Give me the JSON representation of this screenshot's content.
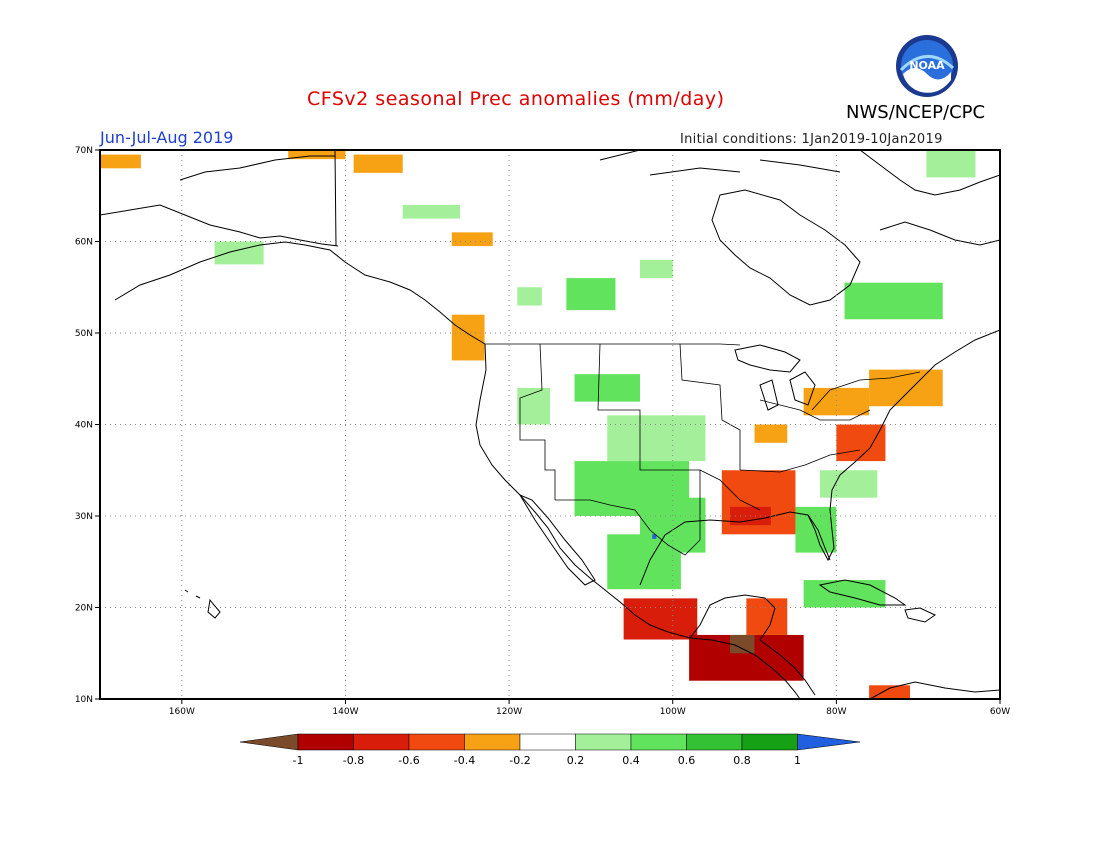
{
  "title": "CFSv2 seasonal Prec anomalies (mm/day)",
  "agency": "NWS/NCEP/CPC",
  "logo_text": "NOAA",
  "season": "Jun-Jul-Aug 2019",
  "initial_conditions": "Initial conditions: 1Jan2019-10Jan2019",
  "map": {
    "projection": "equirectangular",
    "lon_range": [
      -170,
      -60
    ],
    "lat_range": [
      10,
      70
    ],
    "grid": true,
    "lon_labels": [
      "160W",
      "140W",
      "120W",
      "100W",
      "80W",
      "60W"
    ],
    "lat_labels": [
      "70N",
      "60N",
      "50N",
      "40N",
      "30N",
      "20N",
      "10N"
    ]
  },
  "colorbar": {
    "labels": [
      "-1",
      "-0.8",
      "-0.6",
      "-0.4",
      "-0.2",
      "0.2",
      "0.4",
      "0.6",
      "0.8",
      "1"
    ],
    "colors": [
      "#7a4a2a",
      "#b00000",
      "#d81d0a",
      "#f04a10",
      "#f7a215",
      "#ffffff",
      "#a4f09a",
      "#62e35e",
      "#34c234",
      "#16a016",
      "#1f5fe0"
    ]
  },
  "anomaly_regions": [
    {
      "name": "alaska-north-slope",
      "level": -0.3,
      "lon": [
        -147,
        -140
      ],
      "lat": [
        69,
        70
      ]
    },
    {
      "name": "alaska-northwest",
      "level": -0.3,
      "lon": [
        -170,
        -165
      ],
      "lat": [
        68,
        69.5
      ]
    },
    {
      "name": "yukon-north",
      "level": -0.3,
      "lon": [
        -139,
        -133
      ],
      "lat": [
        67.5,
        69.5
      ]
    },
    {
      "name": "northwest-territories",
      "level": 0.3,
      "lon": [
        -133,
        -126
      ],
      "lat": [
        62.5,
        64
      ]
    },
    {
      "name": "british-columbia-north",
      "level": -0.3,
      "lon": [
        -127,
        -122
      ],
      "lat": [
        59.5,
        61
      ]
    },
    {
      "name": "gulf-of-alaska-coast",
      "level": 0.3,
      "lon": [
        -156,
        -150
      ],
      "lat": [
        57.5,
        60
      ]
    },
    {
      "name": "alberta-north",
      "level": 0.3,
      "lon": [
        -119,
        -116
      ],
      "lat": [
        53,
        55
      ]
    },
    {
      "name": "saskatchewan-north",
      "level": 0.4,
      "lon": [
        -113,
        -107
      ],
      "lat": [
        52.5,
        56
      ]
    },
    {
      "name": "manitoba-north",
      "level": 0.3,
      "lon": [
        -104,
        -100
      ],
      "lat": [
        56,
        58
      ]
    },
    {
      "name": "quebec-north",
      "level": 0.4,
      "lon": [
        -79,
        -67
      ],
      "lat": [
        51.5,
        55.5
      ]
    },
    {
      "name": "greenland-west",
      "level": 0.3,
      "lon": [
        -69,
        -63
      ],
      "lat": [
        67,
        70
      ]
    },
    {
      "name": "us-northwest",
      "level": 0.3,
      "lon": [
        -119,
        -115
      ],
      "lat": [
        40,
        44
      ]
    },
    {
      "name": "montana-dakotas",
      "level": 0.4,
      "lon": [
        -112,
        -104
      ],
      "lat": [
        42.5,
        45.5
      ]
    },
    {
      "name": "colorado-plains",
      "level": 0.3,
      "lon": [
        -108,
        -96
      ],
      "lat": [
        36,
        41
      ]
    },
    {
      "name": "southwest-monsoon",
      "level": 0.5,
      "lon": [
        -112,
        -98
      ],
      "lat": [
        30,
        36
      ]
    },
    {
      "name": "texas-central",
      "level": 0.5,
      "lon": [
        -104,
        -96
      ],
      "lat": [
        26,
        32
      ]
    },
    {
      "name": "mexico-highlands",
      "level": 0.4,
      "lon": [
        -108,
        -99
      ],
      "lat": [
        22,
        28
      ]
    },
    {
      "name": "texas-blue-spot",
      "level": 1.0,
      "lon": [
        -102.5,
        -102
      ],
      "lat": [
        27.5,
        28
      ]
    },
    {
      "name": "florida",
      "level": 0.5,
      "lon": [
        -85,
        -80
      ],
      "lat": [
        26,
        31
      ]
    },
    {
      "name": "southeast-coast",
      "level": 0.3,
      "lon": [
        -82,
        -75
      ],
      "lat": [
        32,
        35
      ]
    },
    {
      "name": "caribbean-cuba",
      "level": 0.5,
      "lon": [
        -84,
        -74
      ],
      "lat": [
        20,
        23
      ]
    },
    {
      "name": "great-lakes",
      "level": -0.3,
      "lon": [
        -84,
        -76
      ],
      "lat": [
        41,
        44
      ]
    },
    {
      "name": "new-england",
      "level": -0.3,
      "lon": [
        -76,
        -67
      ],
      "lat": [
        42,
        46
      ]
    },
    {
      "name": "mid-atlantic",
      "level": -0.4,
      "lon": [
        -80,
        -74
      ],
      "lat": [
        36,
        40
      ]
    },
    {
      "name": "ohio-valley",
      "level": -0.3,
      "lon": [
        -90,
        -86
      ],
      "lat": [
        38,
        40
      ]
    },
    {
      "name": "gulf-coast",
      "level": -0.5,
      "lon": [
        -94,
        -85
      ],
      "lat": [
        28,
        35
      ]
    },
    {
      "name": "louisiana",
      "level": -0.7,
      "lon": [
        -93,
        -88
      ],
      "lat": [
        29,
        31
      ]
    },
    {
      "name": "pacific-northwest-coast",
      "level": -0.3,
      "lon": [
        -127,
        -123
      ],
      "lat": [
        47,
        52
      ]
    },
    {
      "name": "mexico-pacific-coast",
      "level": -0.6,
      "lon": [
        -106,
        -97
      ],
      "lat": [
        16.5,
        21
      ]
    },
    {
      "name": "central-america",
      "level": -0.8,
      "lon": [
        -98,
        -84
      ],
      "lat": [
        12,
        17
      ]
    },
    {
      "name": "yucatan",
      "level": -0.4,
      "lon": [
        -91,
        -86
      ],
      "lat": [
        17,
        21
      ]
    },
    {
      "name": "guatemala-core",
      "level": -1.0,
      "lon": [
        -93,
        -90
      ],
      "lat": [
        15,
        17
      ]
    },
    {
      "name": "colombia-north",
      "level": -0.5,
      "lon": [
        -76,
        -71
      ],
      "lat": [
        10,
        11.5
      ]
    }
  ]
}
